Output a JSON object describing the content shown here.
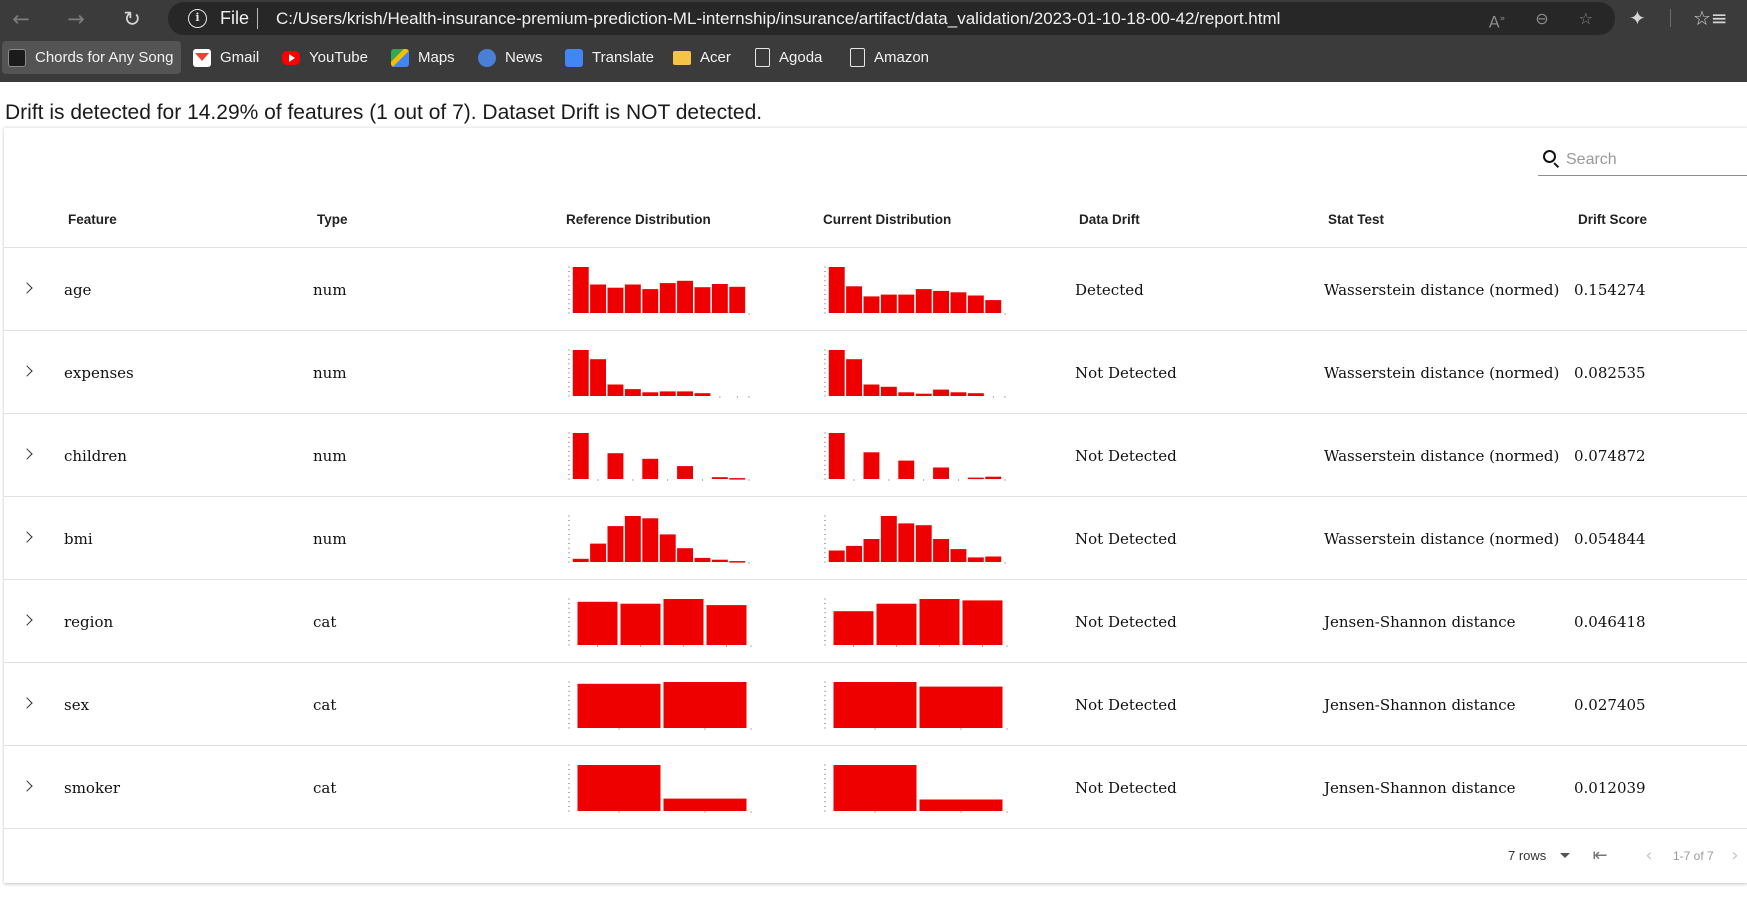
{
  "browser": {
    "url_scheme": "File",
    "url": "C:/Users/krish/Health-insurance-premium-prediction-ML-internship/insurance/artifact/data_validation/2023-01-10-18-00-42/report.html",
    "bookmarks": [
      {
        "label": "Chords for Any Song",
        "icon": "chords-icon"
      },
      {
        "label": "Gmail",
        "icon": "gmail-icon"
      },
      {
        "label": "YouTube",
        "icon": "youtube-icon"
      },
      {
        "label": "Maps",
        "icon": "maps-icon"
      },
      {
        "label": "News",
        "icon": "news-icon"
      },
      {
        "label": "Translate",
        "icon": "translate-icon"
      },
      {
        "label": "Acer",
        "icon": "folder-icon"
      },
      {
        "label": "Agoda",
        "icon": "page-icon"
      },
      {
        "label": "Amazon",
        "icon": "page-icon"
      }
    ]
  },
  "report": {
    "summary": "Drift is detected for 14.29% of features (1 out of 7). Dataset Drift is NOT detected.",
    "search_placeholder": "Search",
    "headers": {
      "feature": "Feature",
      "type": "Type",
      "reference": "Reference Distribution",
      "current": "Current Distribution",
      "drift": "Data Drift",
      "stat_test": "Stat Test",
      "drift_score": "Drift Score"
    },
    "rows": [
      {
        "feature": "age",
        "type": "num",
        "drift": "Detected",
        "stat_test": "Wasserstein distance (normed)",
        "score": "0.154274",
        "ref": [
          100,
          62,
          55,
          62,
          52,
          65,
          70,
          56,
          63,
          57
        ],
        "cur": [
          100,
          58,
          36,
          40,
          40,
          52,
          48,
          45,
          38,
          28
        ]
      },
      {
        "feature": "expenses",
        "type": "num",
        "drift": "Not Detected",
        "stat_test": "Wasserstein distance (normed)",
        "score": "0.082535",
        "ref": [
          100,
          80,
          25,
          15,
          8,
          10,
          10,
          6,
          0,
          0
        ],
        "cur": [
          100,
          80,
          25,
          20,
          8,
          5,
          14,
          8,
          6,
          0
        ]
      },
      {
        "feature": "children",
        "type": "num",
        "drift": "Not Detected",
        "stat_test": "Wasserstein distance (normed)",
        "score": "0.074872",
        "ref": [
          100,
          0,
          56,
          0,
          44,
          0,
          28,
          0,
          4,
          2
        ],
        "cur": [
          100,
          0,
          58,
          0,
          40,
          0,
          25,
          0,
          3,
          5
        ]
      },
      {
        "feature": "bmi",
        "type": "num",
        "drift": "Not Detected",
        "stat_test": "Wasserstein distance (normed)",
        "score": "0.054844",
        "ref": [
          7,
          40,
          78,
          100,
          95,
          60,
          30,
          9,
          5,
          2
        ],
        "cur": [
          25,
          35,
          50,
          100,
          84,
          80,
          50,
          28,
          10,
          12
        ]
      },
      {
        "feature": "region",
        "type": "cat",
        "drift": "Not Detected",
        "stat_test": "Jensen-Shannon distance",
        "score": "0.046418",
        "ref": [
          92,
          88,
          98,
          85
        ],
        "cur": [
          72,
          88,
          98,
          95
        ]
      },
      {
        "feature": "sex",
        "type": "cat",
        "drift": "Not Detected",
        "stat_test": "Jensen-Shannon distance",
        "score": "0.027405",
        "ref": [
          96,
          100
        ],
        "cur": [
          100,
          90
        ]
      },
      {
        "feature": "smoker",
        "type": "cat",
        "drift": "Not Detected",
        "stat_test": "Jensen-Shannon distance",
        "score": "0.012039",
        "ref": [
          100,
          27
        ],
        "cur": [
          100,
          25
        ]
      }
    ],
    "footer": {
      "rows_label": "7 rows",
      "range_label": "1-7 of 7"
    },
    "colors": {
      "bar": "#ee0000"
    }
  }
}
